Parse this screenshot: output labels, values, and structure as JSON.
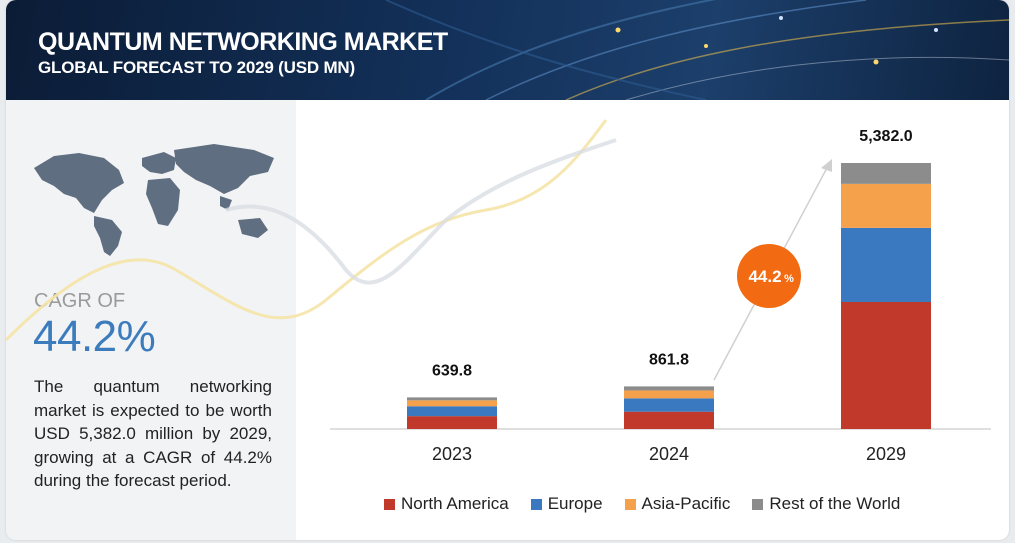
{
  "header": {
    "title": "QUANTUM NETWORKING MARKET",
    "subtitle": "GLOBAL FORECAST TO 2029 (USD MN)"
  },
  "sidebar": {
    "cagr_label": "CAGR OF",
    "cagr_value": "44.2%",
    "description": "The quantum networking market is expected to be worth USD 5,382.0 million by 2029, growing at a CAGR of 44.2% during the forecast period."
  },
  "cagr_badge": {
    "value": "44.2",
    "suffix": "%"
  },
  "colors": {
    "north_america": "#c0392b",
    "europe": "#3a78bf",
    "asia_pacific": "#f5a04a",
    "rest_of_world": "#8c8c8c",
    "badge": "#f26a12"
  },
  "chart_data": {
    "type": "bar",
    "stacked": true,
    "categories": [
      "2023",
      "2024",
      "2029"
    ],
    "totals": [
      "639.8",
      "861.8",
      "5,382.0"
    ],
    "total_values": [
      639.8,
      861.8,
      5382.0
    ],
    "series": [
      {
        "name": "North America",
        "values": [
          260,
          350,
          2570
        ]
      },
      {
        "name": "Europe",
        "values": [
          200,
          270,
          1500
        ]
      },
      {
        "name": "Asia-Pacific",
        "values": [
          120,
          160,
          890
        ]
      },
      {
        "name": "Rest of the World",
        "values": [
          59.8,
          81.8,
          422
        ]
      }
    ],
    "legend_position": "bottom",
    "grid": false
  }
}
